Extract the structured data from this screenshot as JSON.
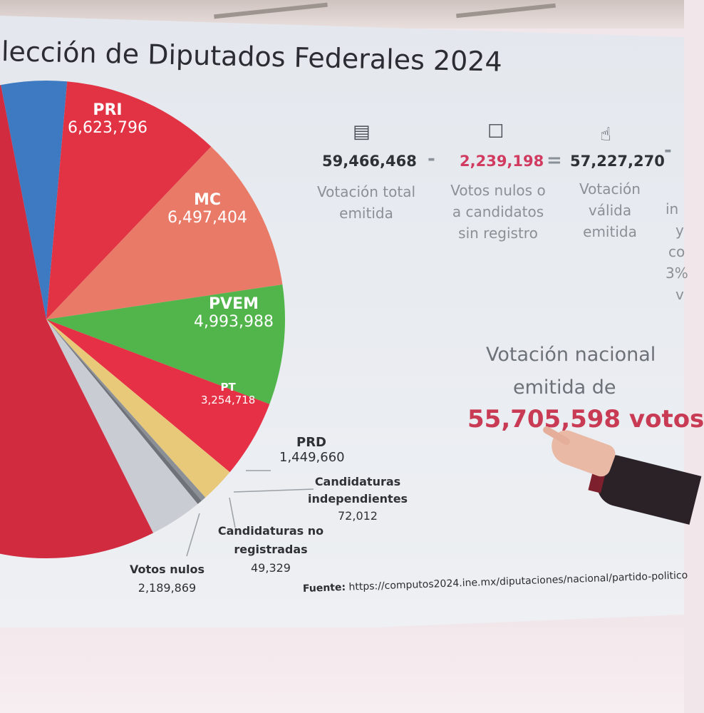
{
  "title": "lección de Diputados Federales 2024",
  "chart_data": {
    "type": "pie",
    "slices": [
      {
        "label": "",
        "value": 0,
        "color": "#3d7ac1"
      },
      {
        "label": "PRI",
        "value": 6623796,
        "value_text": "6,623,796",
        "color": "#e23345"
      },
      {
        "label": "MC",
        "value": 6497404,
        "value_text": "6,497,404",
        "color": "#e97a68"
      },
      {
        "label": "PVEM",
        "value": 4993988,
        "value_text": "4,993,988",
        "color": "#52b54b"
      },
      {
        "label": "PT",
        "value": 3254718,
        "value_text": "3,254,718",
        "color": "#e63046"
      },
      {
        "label": "PRD",
        "value": 1449660,
        "value_text": "1,449,660",
        "color": "#e8c97a"
      },
      {
        "label": "Candidaturas independientes",
        "value": 72012,
        "value_text": "72,012",
        "color": "#8b8f96"
      },
      {
        "label": "Candidaturas no registradas",
        "value": 49329,
        "value_text": "49,329",
        "color": "#6f7379"
      },
      {
        "label": "Votos nulos",
        "value": 2189869,
        "value_text": "2,189,869",
        "color": "#c9ccd2"
      }
    ],
    "extra_slice_color": "#d12b40"
  },
  "equation": {
    "total": "59,466,468",
    "total_label_1": "Votación total",
    "total_label_2": "emitida",
    "minus": "-",
    "nulos": "2,239,198",
    "nulos_label_1": "Votos nulos o",
    "nulos_label_2": "a  candidatos",
    "nulos_label_3": "sin registro",
    "equals": "=",
    "valida": "57,227,270",
    "valida_label_1": "Votación",
    "valida_label_2": "válida",
    "valida_label_3": "emitida",
    "minus2": "-",
    "partial_1": "in",
    "partial_2": "y",
    "partial_3": "co",
    "partial_4": "3%",
    "partial_5": "v",
    "icons": [
      "ballot-box-icon",
      "void-vote-icon",
      "thumbs-up-icon"
    ]
  },
  "national": {
    "line1": "Votación nacional",
    "line2": "emitida de",
    "line3": "55,705,598 votos"
  },
  "source": {
    "label": "Fuente:",
    "url": "https://computos2024.ine.mx/diputaciones/nacional/partido-politico"
  },
  "colors": {
    "accent_red": "#c93b55",
    "text_dark": "#2e3136",
    "text_gray": "#8c9096"
  }
}
